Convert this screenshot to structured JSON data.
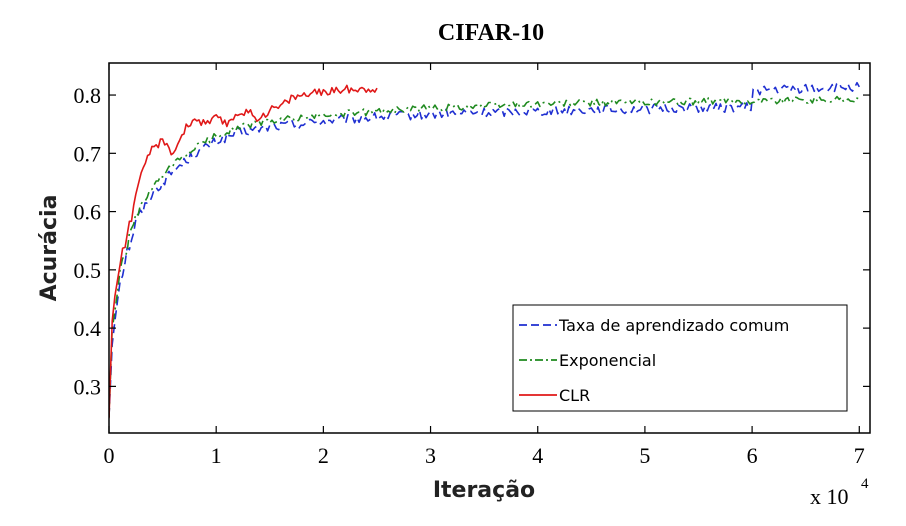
{
  "chart_data": {
    "type": "line",
    "title": "CIFAR-10",
    "xlabel": "Iteração",
    "ylabel": "Acurácia",
    "x_multiplier": "x 10",
    "x_multiplier_exp": "4",
    "xlim": [
      0,
      7.1
    ],
    "ylim": [
      0.22,
      0.855
    ],
    "xticks": [
      0,
      1,
      2,
      3,
      4,
      5,
      6,
      7
    ],
    "yticks": [
      0.3,
      0.4,
      0.5,
      0.6,
      0.7,
      0.8
    ],
    "yticklabels": [
      "0.3",
      "0.4",
      "0.5",
      "0.6",
      "0.7",
      "0.8"
    ],
    "legend_position": "bottom-right",
    "series": [
      {
        "name": "Taxa de aprendizado comum",
        "color": "#1f2fd1",
        "style": "dashed",
        "jitter": 0.008,
        "x": [
          0,
          0.03,
          0.08,
          0.15,
          0.25,
          0.4,
          0.6,
          0.8,
          1.0,
          1.2,
          1.5,
          2.0,
          2.5,
          3.0,
          3.5,
          4.0,
          4.5,
          5.0,
          5.5,
          5.99,
          6.01,
          6.3,
          6.6,
          7.0
        ],
        "y": [
          0.25,
          0.38,
          0.46,
          0.52,
          0.58,
          0.63,
          0.67,
          0.7,
          0.72,
          0.735,
          0.745,
          0.755,
          0.762,
          0.767,
          0.77,
          0.773,
          0.775,
          0.776,
          0.778,
          0.779,
          0.808,
          0.81,
          0.812,
          0.814
        ]
      },
      {
        "name": "Exponencial",
        "color": "#1f8a1f",
        "style": "dashdot",
        "jitter": 0.006,
        "x": [
          0,
          0.03,
          0.08,
          0.15,
          0.25,
          0.4,
          0.6,
          0.8,
          1.0,
          1.2,
          1.5,
          2.0,
          2.5,
          3.0,
          3.5,
          4.0,
          5.0,
          6.0,
          6.5,
          7.0
        ],
        "y": [
          0.25,
          0.39,
          0.47,
          0.53,
          0.59,
          0.64,
          0.68,
          0.71,
          0.73,
          0.745,
          0.755,
          0.765,
          0.772,
          0.778,
          0.782,
          0.785,
          0.788,
          0.79,
          0.792,
          0.793
        ]
      },
      {
        "name": "CLR",
        "color": "#e01818",
        "style": "solid",
        "jitter": 0.007,
        "x": [
          0,
          0.03,
          0.08,
          0.15,
          0.25,
          0.3,
          0.4,
          0.5,
          0.6,
          0.7,
          0.8,
          0.9,
          1.0,
          1.1,
          1.2,
          1.3,
          1.4,
          1.5,
          1.6,
          1.7,
          1.8,
          2.0,
          2.2,
          2.5
        ],
        "y": [
          0.25,
          0.41,
          0.49,
          0.55,
          0.62,
          0.66,
          0.71,
          0.72,
          0.7,
          0.74,
          0.76,
          0.75,
          0.76,
          0.75,
          0.77,
          0.77,
          0.76,
          0.775,
          0.78,
          0.795,
          0.8,
          0.805,
          0.81,
          0.812
        ]
      }
    ]
  }
}
